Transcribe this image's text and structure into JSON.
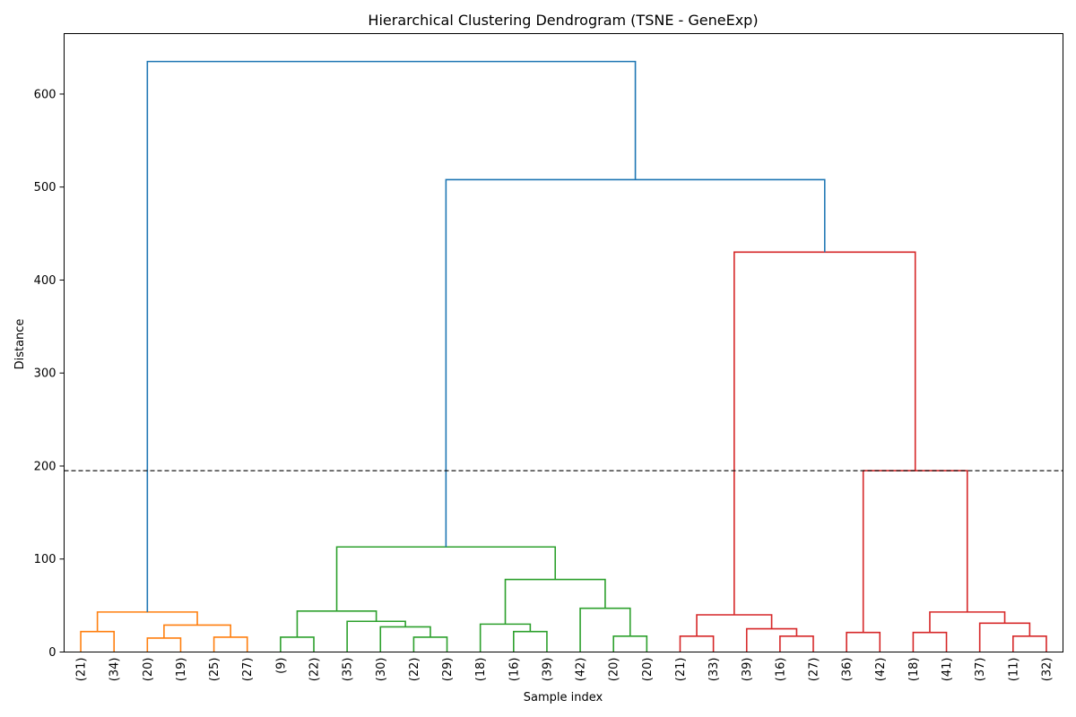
{
  "chart_data": {
    "type": "dendrogram",
    "title": "Hierarchical Clustering Dendrogram (TSNE - GeneExp)",
    "xlabel": "Sample index",
    "ylabel": "Distance",
    "ylim": [
      0,
      665
    ],
    "yticks": [
      0,
      100,
      200,
      300,
      400,
      500,
      600
    ],
    "cut_threshold": 195,
    "leaf_labels": [
      "(21)",
      "(34)",
      "(20)",
      "(19)",
      "(25)",
      "(27)",
      "(9)",
      "(22)",
      "(35)",
      "(30)",
      "(22)",
      "(29)",
      "(18)",
      "(16)",
      "(39)",
      "(42)",
      "(20)",
      "(20)",
      "(21)",
      "(33)",
      "(39)",
      "(16)",
      "(27)",
      "(36)",
      "(42)",
      "(18)",
      "(41)",
      "(37)",
      "(11)",
      "(32)"
    ],
    "colors": {
      "orange": "#ff7f0e",
      "green": "#2ca02c",
      "red": "#d62728",
      "root": "#1f77b4"
    },
    "merges": [
      {
        "id": "o1",
        "left": "L0",
        "right": "L1",
        "height": 22,
        "color": "orange"
      },
      {
        "id": "o2",
        "left": "L2",
        "right": "L3",
        "height": 15,
        "color": "orange"
      },
      {
        "id": "o3",
        "left": "L4",
        "right": "L5",
        "height": 16,
        "color": "orange"
      },
      {
        "id": "o4",
        "left": "o2",
        "right": "o3",
        "height": 29,
        "color": "orange"
      },
      {
        "id": "o5",
        "left": "o1",
        "right": "o4",
        "height": 43,
        "color": "orange"
      },
      {
        "id": "g1",
        "left": "L6",
        "right": "L7",
        "height": 16,
        "color": "green"
      },
      {
        "id": "g2",
        "left": "L10",
        "right": "L11",
        "height": 16,
        "color": "green"
      },
      {
        "id": "g3",
        "left": "L9",
        "right": "g2",
        "height": 27,
        "color": "green"
      },
      {
        "id": "g4",
        "left": "L8",
        "right": "g3",
        "height": 33,
        "color": "green"
      },
      {
        "id": "g5",
        "left": "g1",
        "right": "g4",
        "height": 44,
        "color": "green"
      },
      {
        "id": "g6",
        "left": "L13",
        "right": "L14",
        "height": 22,
        "color": "green"
      },
      {
        "id": "g7",
        "left": "L12",
        "right": "g6",
        "height": 30,
        "color": "green"
      },
      {
        "id": "g8",
        "left": "L16",
        "right": "L17",
        "height": 17,
        "color": "green"
      },
      {
        "id": "g9",
        "left": "L15",
        "right": "g8",
        "height": 47,
        "color": "green"
      },
      {
        "id": "g10",
        "left": "g7",
        "right": "g9",
        "height": 78,
        "color": "green"
      },
      {
        "id": "g11",
        "left": "g5",
        "right": "g10",
        "height": 113,
        "color": "green"
      },
      {
        "id": "r1",
        "left": "L18",
        "right": "L19",
        "height": 17,
        "color": "red"
      },
      {
        "id": "r2",
        "left": "L21",
        "right": "L22",
        "height": 17,
        "color": "red"
      },
      {
        "id": "r3",
        "left": "L20",
        "right": "r2",
        "height": 25,
        "color": "red"
      },
      {
        "id": "r4",
        "left": "r1",
        "right": "r3",
        "height": 40,
        "color": "red"
      },
      {
        "id": "r5",
        "left": "L23",
        "right": "L24",
        "height": 21,
        "color": "red"
      },
      {
        "id": "r6",
        "left": "L25",
        "right": "L26",
        "height": 21,
        "color": "red"
      },
      {
        "id": "r7",
        "left": "L28",
        "right": "L29",
        "height": 17,
        "color": "red"
      },
      {
        "id": "r8",
        "left": "L27",
        "right": "r7",
        "height": 31,
        "color": "red"
      },
      {
        "id": "r9",
        "left": "r6",
        "right": "r8",
        "height": 43,
        "color": "red"
      },
      {
        "id": "r10",
        "left": "r5",
        "right": "r9",
        "height": 195,
        "color": "red"
      },
      {
        "id": "r11",
        "left": "r4",
        "right": "r10",
        "height": 430,
        "color": "red"
      },
      {
        "id": "b1",
        "left": "g11",
        "right": "r11",
        "height": 508,
        "color": "root"
      },
      {
        "id": "b2",
        "left": "o5",
        "right": "b1",
        "height": 635,
        "color": "root"
      }
    ]
  }
}
